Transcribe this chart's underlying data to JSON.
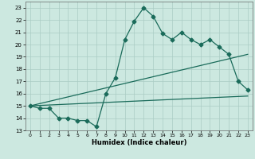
{
  "title": "",
  "xlabel": "Humidex (Indice chaleur)",
  "background_color": "#cce8e0",
  "grid_color": "#aaccC4",
  "line_color": "#1a6b5a",
  "x_ticks": [
    0,
    1,
    2,
    3,
    4,
    5,
    6,
    7,
    8,
    9,
    10,
    11,
    12,
    13,
    14,
    15,
    16,
    17,
    18,
    19,
    20,
    21,
    22,
    23
  ],
  "ylim": [
    13,
    23.5
  ],
  "xlim": [
    -0.5,
    23.5
  ],
  "yticks": [
    13,
    14,
    15,
    16,
    17,
    18,
    19,
    20,
    21,
    22,
    23
  ],
  "series1_x": [
    0,
    1,
    2,
    3,
    4,
    5,
    6,
    7,
    8,
    9,
    10,
    11,
    12,
    13,
    14,
    15,
    16,
    17,
    18,
    19,
    20,
    21,
    22,
    23
  ],
  "series1_y": [
    15.0,
    14.8,
    14.8,
    14.0,
    14.0,
    13.8,
    13.8,
    13.3,
    16.0,
    17.3,
    20.4,
    21.9,
    23.0,
    22.3,
    20.9,
    20.4,
    21.0,
    20.4,
    20.0,
    20.4,
    19.8,
    19.2,
    17.0,
    16.3
  ],
  "series2_x": [
    0,
    23
  ],
  "series2_y": [
    15.0,
    19.2
  ],
  "series3_x": [
    0,
    23
  ],
  "series3_y": [
    15.0,
    15.8
  ],
  "markersize": 2.5,
  "linewidth": 0.9
}
